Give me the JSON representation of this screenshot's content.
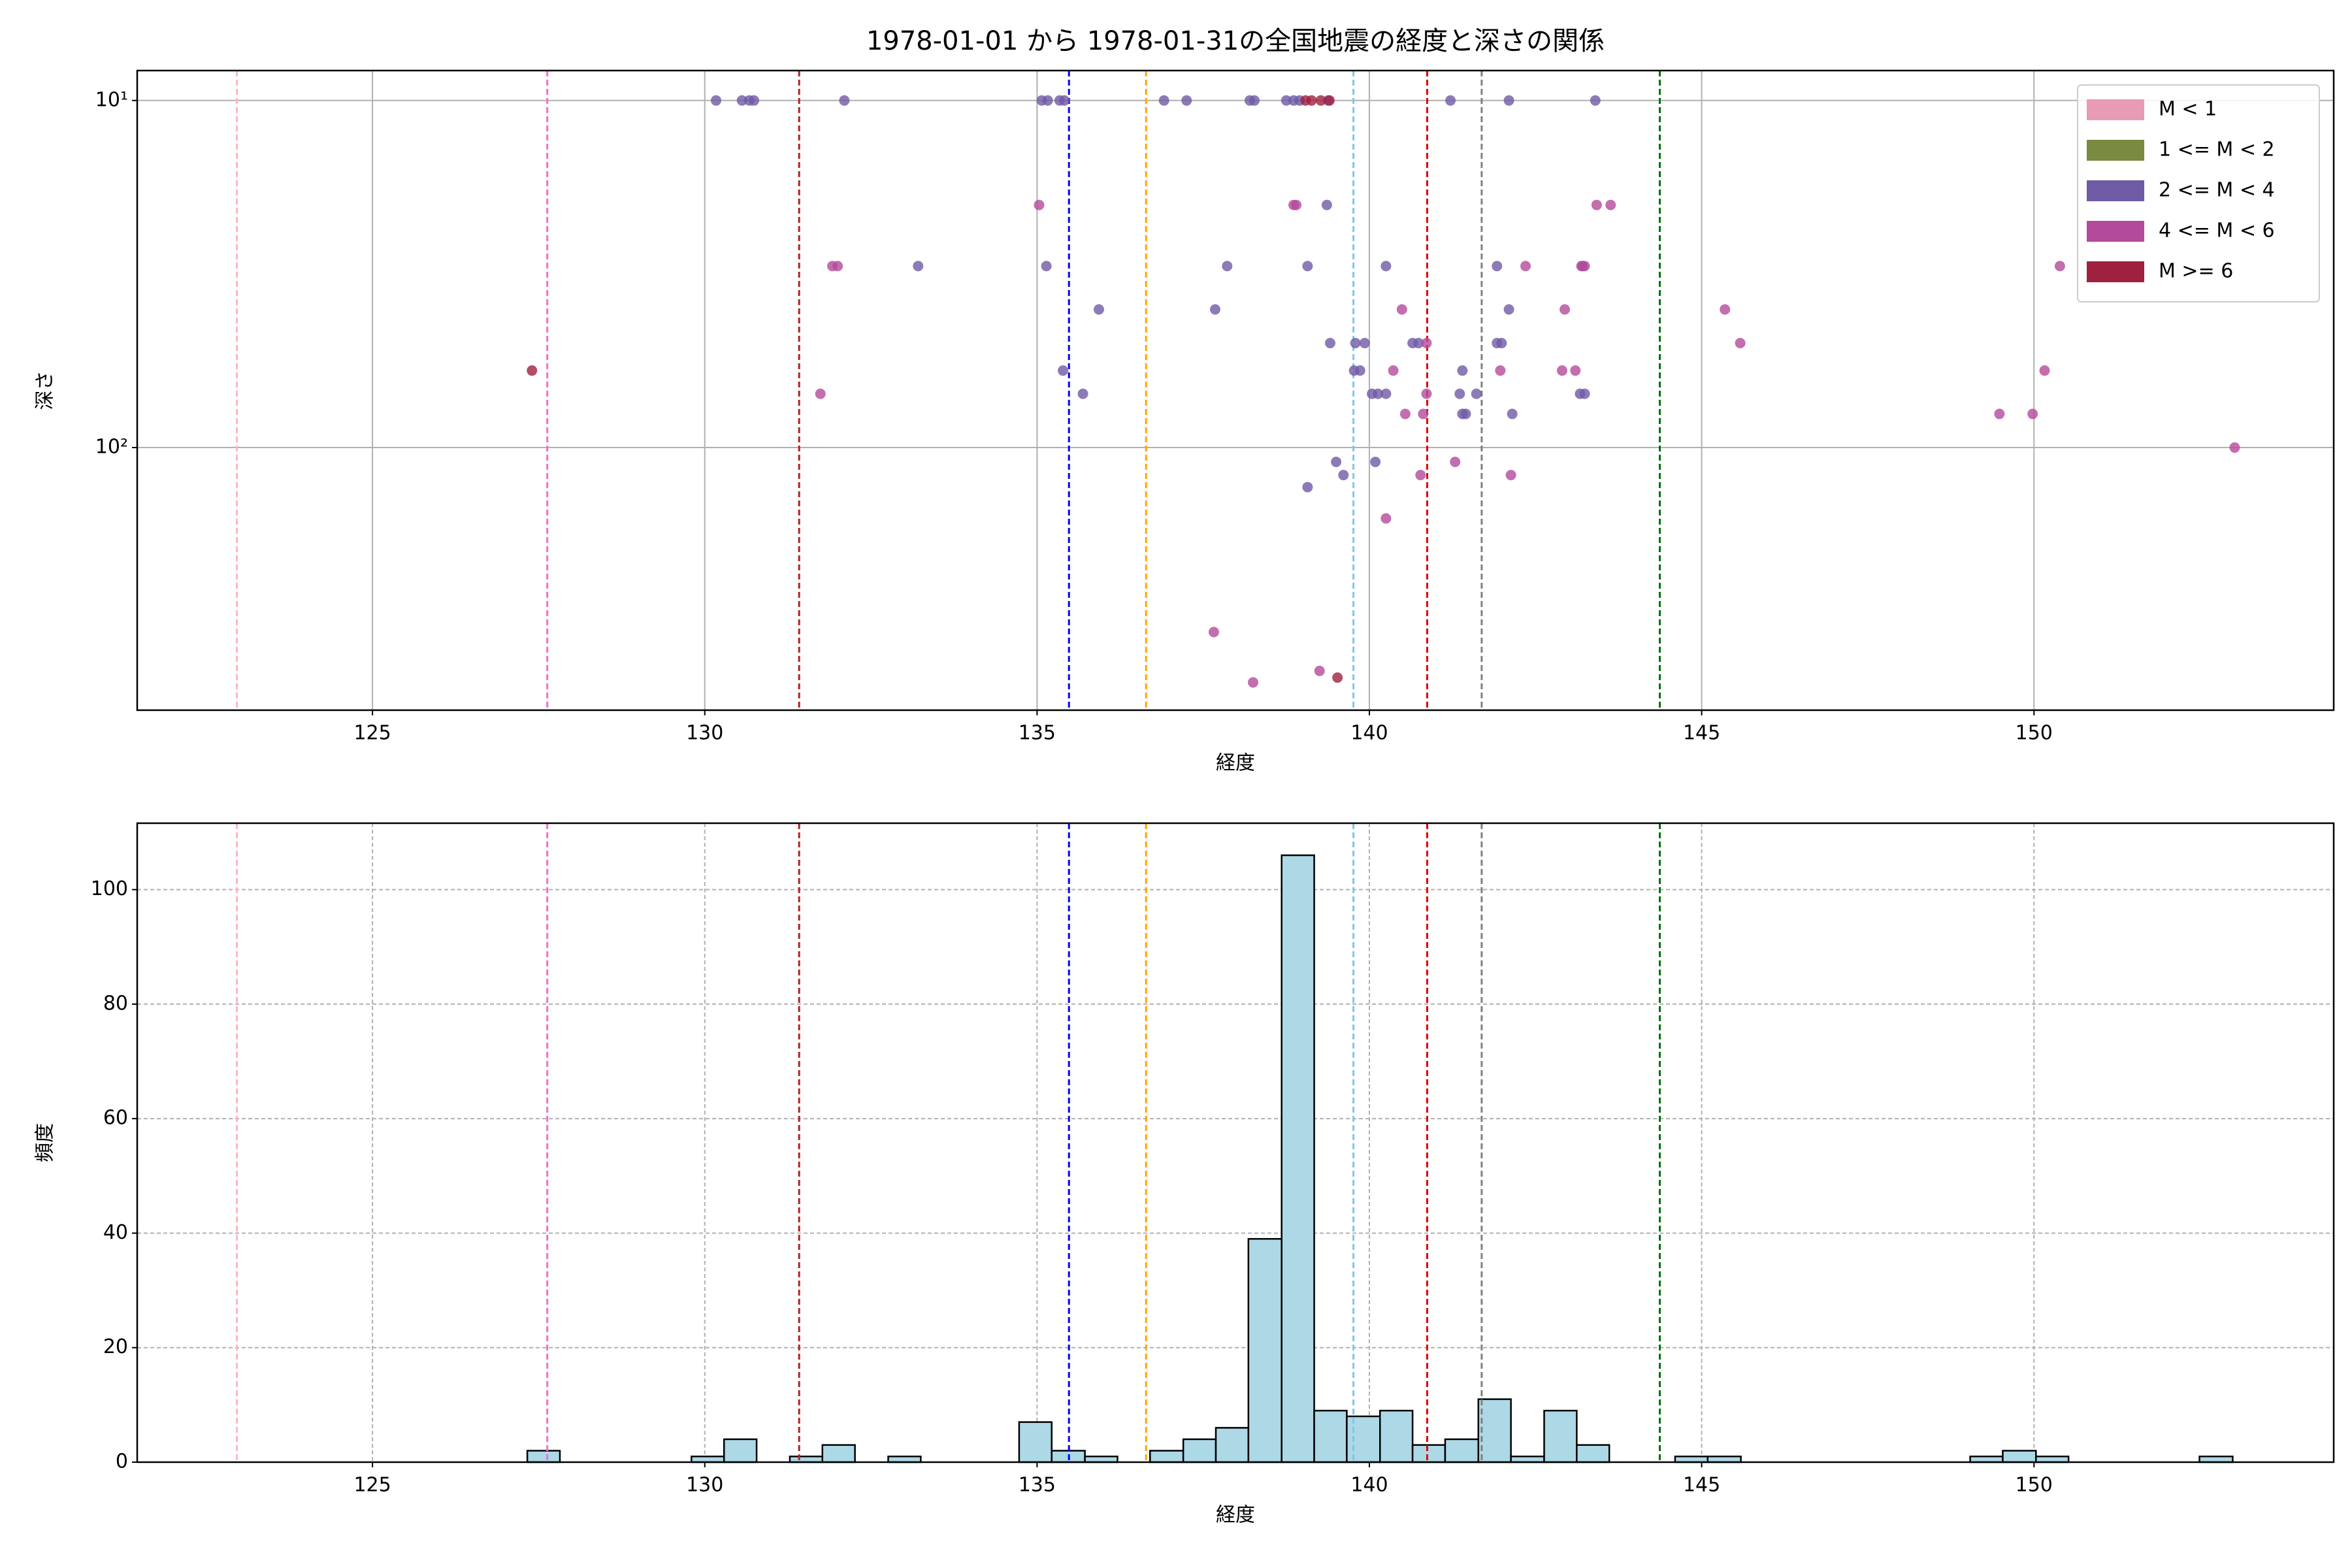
{
  "chart_data": [
    {
      "type": "scatter",
      "title": "1978-01-01 から 1978-01-31の全国地震の経度と深さの関係",
      "x_label": "経度",
      "y_label": "深さ",
      "xlim": [
        121.46,
        154.51
      ],
      "xticks": [
        125,
        130,
        135,
        140,
        145,
        150
      ],
      "ylim": [
        571,
        8.2
      ],
      "yscale": "log",
      "yticks": [
        {
          "value": 10,
          "label": "10¹"
        },
        {
          "value": 100,
          "label": "10²"
        }
      ],
      "grid": true,
      "grid_style": "solid",
      "legend": "upper right",
      "vlines": [
        {
          "x": 122.96,
          "color": "#ffb6c1"
        },
        {
          "x": 127.63,
          "color": "#ee6fd6"
        },
        {
          "x": 131.42,
          "color": "#b22222"
        },
        {
          "x": 135.48,
          "color": "#0000ff"
        },
        {
          "x": 136.64,
          "color": "#ffa500"
        },
        {
          "x": 139.76,
          "color": "#7ec8e3"
        },
        {
          "x": 140.87,
          "color": "#e00000"
        },
        {
          "x": 141.69,
          "color": "#808080"
        },
        {
          "x": 144.37,
          "color": "#007000"
        }
      ],
      "series": [
        {
          "name": "M < 1",
          "color": "#e79bb4",
          "x": [],
          "values": []
        },
        {
          "name": "1 <= M < 2",
          "color": "#7a8a40",
          "x": [],
          "values": []
        },
        {
          "name": "2 <= M < 4",
          "color": "#6f5aa5",
          "x": [
            130.17,
            130.56,
            130.67,
            130.74,
            132.1,
            135.07,
            135.16,
            135.34,
            135.41,
            136.91,
            137.25,
            138.2,
            138.27,
            138.75,
            138.86,
            138.95,
            139.38,
            141.22,
            142.1,
            143.4,
            139.36,
            133.21,
            135.14,
            137.86,
            139.07,
            140.25,
            141.92,
            143.21,
            135.93,
            137.68,
            142.1,
            139.41,
            139.79,
            139.93,
            140.65,
            140.74,
            141.92,
            141.99,
            135.39,
            139.77,
            139.86,
            141.4,
            135.69,
            140.04,
            140.13,
            140.25,
            141.36,
            141.61,
            143.17,
            143.24,
            141.4,
            141.45,
            142.15,
            139.5,
            140.09,
            139.61,
            139.07
          ],
          "values": [
            10,
            10,
            10,
            10,
            10,
            10,
            10,
            10,
            10,
            10,
            10,
            10,
            10,
            10,
            10,
            10,
            10,
            10,
            10,
            10,
            20,
            30,
            30,
            30,
            30,
            30,
            30,
            30,
            40,
            40,
            40,
            50,
            50,
            50,
            50,
            50,
            50,
            50,
            60,
            60,
            60,
            60,
            70,
            70,
            70,
            70,
            70,
            70,
            70,
            70,
            80,
            80,
            80,
            110,
            110,
            120,
            130
          ]
        },
        {
          "name": "4 <= M < 6",
          "color": "#b44a9b",
          "x": [
            135.03,
            138.86,
            138.9,
            143.42,
            143.63,
            131.92,
            132.0,
            142.35,
            143.19,
            143.24,
            150.39,
            140.49,
            142.94,
            145.35,
            140.86,
            145.58,
            140.36,
            141.97,
            142.9,
            143.1,
            150.16,
            131.74,
            140.86,
            140.54,
            140.81,
            149.48,
            149.98,
            153.02,
            141.29,
            140.77,
            142.13,
            140.25,
            137.66,
            139.25,
            138.25
          ],
          "values": [
            20,
            20,
            20,
            20,
            20,
            30,
            30,
            30,
            30,
            30,
            30,
            40,
            40,
            40,
            50,
            50,
            60,
            60,
            60,
            60,
            60,
            70,
            70,
            80,
            80,
            80,
            80,
            100,
            110,
            120,
            120,
            160,
            340,
            440,
            475
          ]
        },
        {
          "name": "M >= 6",
          "color": "#a0203f",
          "x": [
            139.04,
            139.13,
            139.27,
            139.4,
            127.4,
            139.52
          ],
          "values": [
            10,
            10,
            10,
            10,
            60,
            460
          ]
        }
      ]
    },
    {
      "type": "histogram",
      "x_label": "経度",
      "y_label": "頻度",
      "xlim": [
        121.46,
        154.51
      ],
      "xticks": [
        125,
        130,
        135,
        140,
        145,
        150
      ],
      "ylim": [
        0,
        111.6
      ],
      "yticks": [
        0,
        20,
        40,
        60,
        80,
        100
      ],
      "grid": true,
      "grid_style": "dashed",
      "color": "#add8e6",
      "vlines": [
        {
          "x": 122.96,
          "color": "#ffb6c1"
        },
        {
          "x": 127.63,
          "color": "#ee6fd6"
        },
        {
          "x": 131.42,
          "color": "#b22222"
        },
        {
          "x": 135.48,
          "color": "#0000ff"
        },
        {
          "x": 136.64,
          "color": "#ffa500"
        },
        {
          "x": 139.76,
          "color": "#7ec8e3"
        },
        {
          "x": 140.87,
          "color": "#e00000"
        },
        {
          "x": 141.69,
          "color": "#808080"
        },
        {
          "x": 144.37,
          "color": "#007000"
        }
      ],
      "bins": [
        127.33,
        127.82,
        128.32,
        128.81,
        129.3,
        129.8,
        130.29,
        130.78,
        131.28,
        131.77,
        132.26,
        132.76,
        133.25,
        133.74,
        134.24,
        134.73,
        135.22,
        135.72,
        136.21,
        136.7,
        137.2,
        137.69,
        138.18,
        138.68,
        139.17,
        139.66,
        140.16,
        140.65,
        141.14,
        141.64,
        142.13,
        142.63,
        143.12,
        143.61,
        144.11,
        144.6,
        145.09,
        145.59,
        146.08,
        146.57,
        147.07,
        147.56,
        148.05,
        148.55,
        149.04,
        149.53,
        150.03,
        150.52,
        151.01,
        151.51,
        152.0,
        152.49,
        152.99
      ],
      "values": [
        2,
        0,
        0,
        0,
        0,
        1,
        4,
        0,
        1,
        3,
        0,
        1,
        0,
        0,
        0,
        7,
        2,
        1,
        0,
        2,
        4,
        6,
        39,
        106,
        9,
        8,
        9,
        3,
        4,
        11,
        1,
        9,
        3,
        0,
        0,
        1,
        1,
        0,
        0,
        0,
        0,
        0,
        0,
        0,
        1,
        2,
        1,
        0,
        0,
        0,
        0,
        1
      ]
    }
  ]
}
